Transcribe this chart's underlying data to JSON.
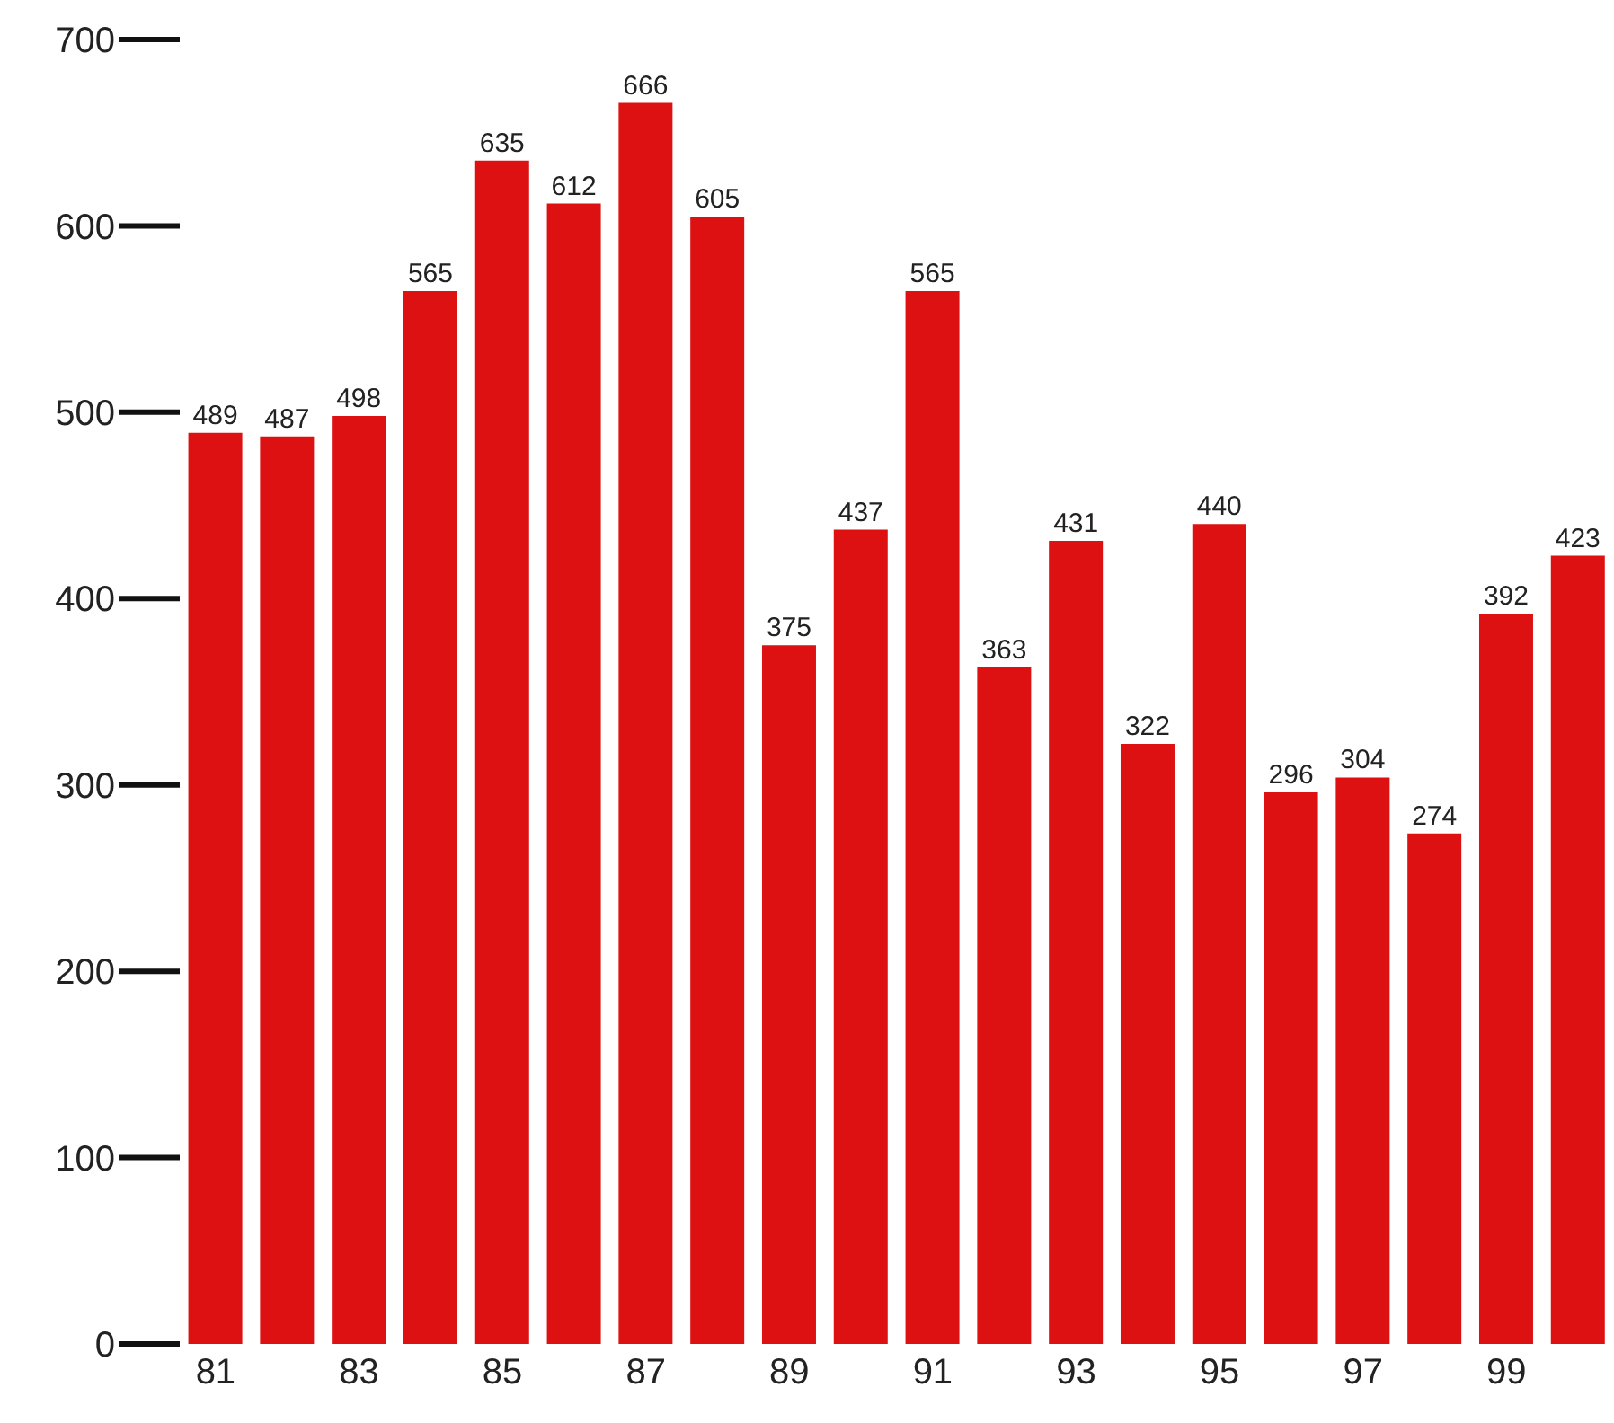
{
  "chart_data": {
    "type": "bar",
    "categories": [
      "81",
      null,
      "83",
      null,
      "85",
      null,
      "87",
      null,
      "89",
      null,
      "91",
      null,
      "93",
      null,
      "95",
      null,
      "97",
      null,
      "99",
      null
    ],
    "values": [
      489,
      487,
      498,
      565,
      635,
      612,
      666,
      605,
      375,
      437,
      565,
      363,
      431,
      322,
      440,
      296,
      304,
      274,
      392,
      423
    ],
    "color": "#dd1111",
    "ylim": [
      0,
      700
    ],
    "yticks": [
      0,
      100,
      200,
      300,
      400,
      500,
      600,
      700
    ],
    "grid": false,
    "data_labels": true,
    "legend": false
  }
}
